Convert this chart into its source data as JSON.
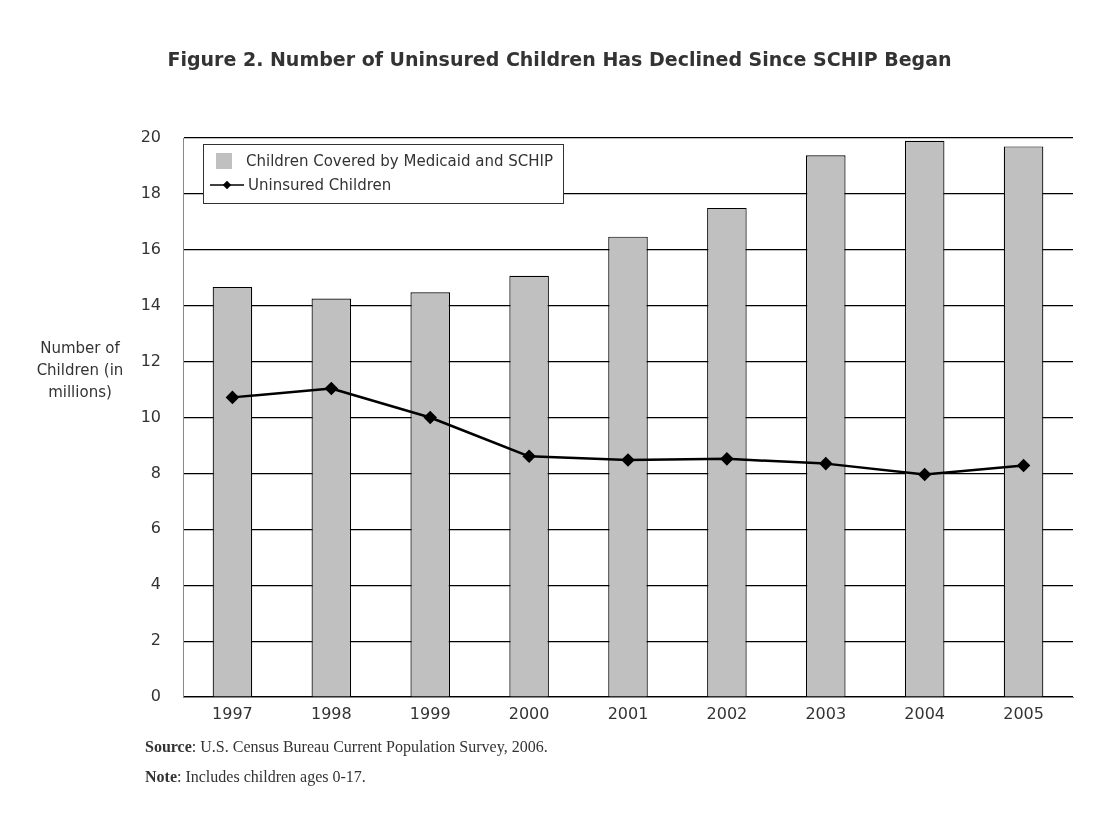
{
  "chart_data": {
    "type": "bar",
    "title": "Figure 2. Number of Uninsured Children Has Declined Since SCHIP Began",
    "ylabel": "Number of Children (in millions)",
    "categories": [
      "1997",
      "1998",
      "1999",
      "2000",
      "2001",
      "2002",
      "2003",
      "2004",
      "2005"
    ],
    "series": [
      {
        "name": "Children Covered by Medicaid and SCHIP",
        "color": "#c0c0c0",
        "values": [
          14.67,
          14.26,
          14.48,
          15.07,
          16.47,
          17.5,
          19.38,
          19.9,
          19.7
        ]
      },
      {
        "name": "Uninsured Children",
        "type": "line",
        "color": "#000000",
        "marker": "diamond",
        "values": [
          10.72,
          11.04,
          10.0,
          8.61,
          8.48,
          8.52,
          8.35,
          7.96,
          8.28
        ]
      }
    ],
    "ylim": [
      0,
      20
    ],
    "yticks": [
      0,
      2,
      4,
      6,
      8,
      10,
      12,
      14,
      16,
      18,
      20
    ],
    "grid": "y",
    "legend": "top left",
    "annotations": [
      "Source: U.S. Census Bureau Current Population Survey, 2006.",
      "Note: Includes children ages 0-17."
    ]
  }
}
